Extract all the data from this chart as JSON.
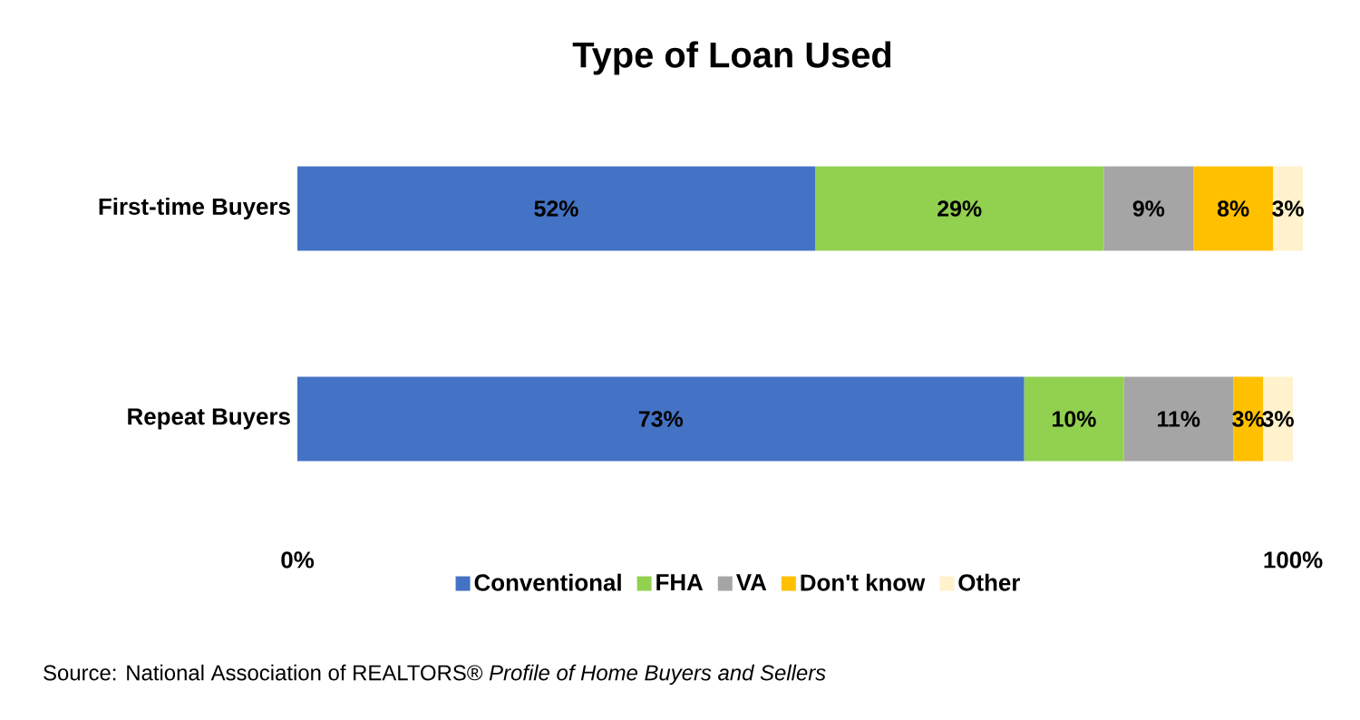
{
  "chart_data": {
    "type": "bar",
    "orientation": "horizontal",
    "stacked": true,
    "title": "Type of Loan Used",
    "categories": [
      "First-time Buyers",
      "Repeat Buyers"
    ],
    "series": [
      {
        "name": "Conventional",
        "color": "#4472c4",
        "values": [
          52,
          73
        ],
        "value_labels": [
          "52%",
          "73%"
        ]
      },
      {
        "name": "FHA",
        "color": "#92d050",
        "values": [
          29,
          10
        ],
        "value_labels": [
          "29%",
          "10%"
        ]
      },
      {
        "name": "VA",
        "color": "#a5a5a5",
        "values": [
          9,
          11
        ],
        "value_labels": [
          "9%",
          "11%"
        ]
      },
      {
        "name": "Don't know",
        "color": "#ffc000",
        "values": [
          8,
          3
        ],
        "value_labels": [
          "8%",
          "3%"
        ]
      },
      {
        "name": "Other",
        "color": "#fff2cc",
        "values": [
          3,
          3
        ],
        "value_labels": [
          "3%",
          "3%"
        ]
      }
    ],
    "xlim": [
      0,
      101
    ],
    "xticks": [
      {
        "value": 0,
        "label": "0%"
      },
      {
        "value": 100,
        "label": "100%"
      }
    ],
    "legend": "bottom",
    "grid": false,
    "annotations": [
      "Source: National Association of REALTORS® *Profile of Home Buyers and Sellers*"
    ]
  }
}
